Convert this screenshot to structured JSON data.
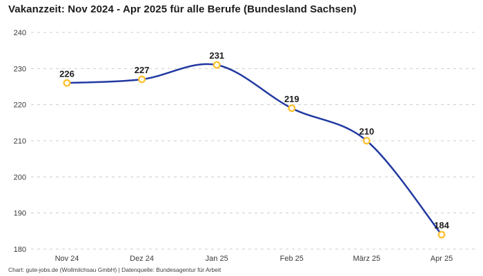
{
  "title": "Vakanzzeit: Nov 2024 - Apr 2025 für alle Berufe (Bundesland Sachsen)",
  "footer": "Chart: gute-jobs.de (Wollmilchsau GmbH) | Datenquelle: Bundesagentur für Arbeit",
  "colors": {
    "background": "#ffffff",
    "line": "#2038a0",
    "marker_ring": "#fcc233",
    "marker_fill": "#ffffff",
    "grid": "#cccccc",
    "value_label": "#1d1d1d",
    "tick_label": "#3a3a3a",
    "title_text": "#1c1c1c",
    "footer_text": "#3d3d3d"
  },
  "chart_data": {
    "type": "line",
    "title": "Vakanzzeit: Nov 2024 - Apr 2025 für alle Berufe (Bundesland Sachsen)",
    "categories": [
      "Nov 24",
      "Dez 24",
      "Jan 25",
      "Feb 25",
      "März 25",
      "Apr 25"
    ],
    "values": [
      226,
      227,
      231,
      219,
      210,
      184
    ],
    "point_labels": [
      "226",
      "227",
      "231",
      "219",
      "210",
      "184"
    ],
    "xlabel": "",
    "ylabel": "",
    "ylim": [
      180,
      240
    ],
    "yticks": [
      180,
      190,
      200,
      210,
      220,
      230,
      240
    ],
    "grid": "horizontal-dashed",
    "legend": "none",
    "smooth": true
  }
}
